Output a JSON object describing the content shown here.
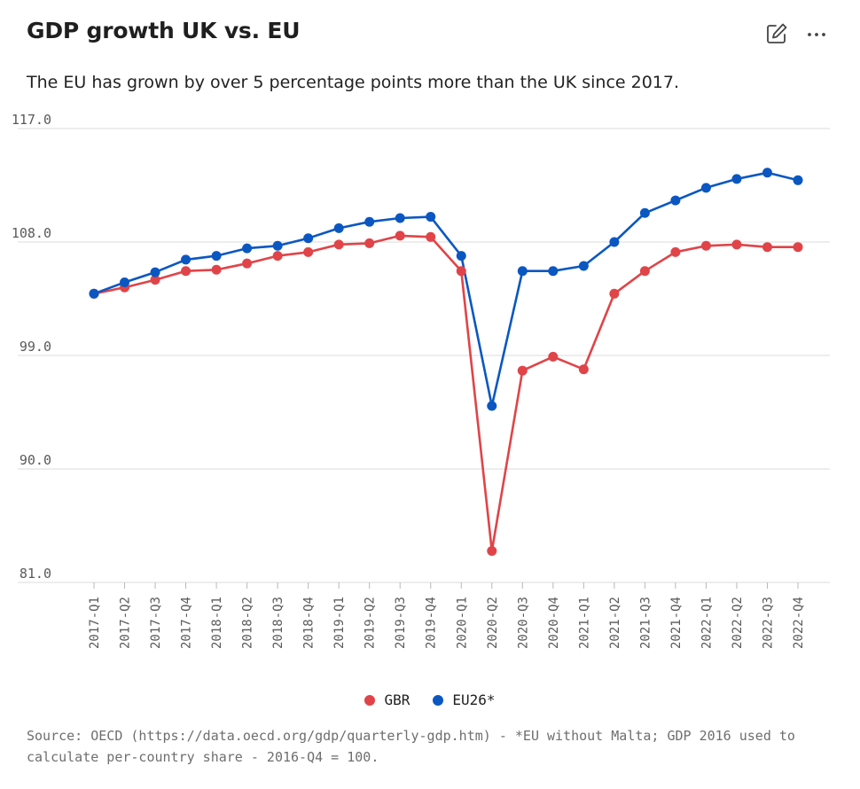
{
  "header": {
    "title": "GDP growth UK vs. EU",
    "subtitle": "The EU has grown by over 5 percentage points more than the UK since 2017.",
    "edit_icon": "pencil-square-icon",
    "more_icon": "ellipsis-icon"
  },
  "chart_data": {
    "type": "line",
    "title": "GDP growth UK vs. EU",
    "xlabel": "",
    "ylabel": "",
    "ylim": [
      81.0,
      117.0
    ],
    "yticks": [
      "117.0",
      "108.0",
      "99.0",
      "90.0",
      "81.0"
    ],
    "grid": true,
    "legend_position": "bottom",
    "categories": [
      "2017-Q1",
      "2017-Q2",
      "2017-Q3",
      "2017-Q4",
      "2018-Q1",
      "2018-Q2",
      "2018-Q3",
      "2018-Q4",
      "2019-Q1",
      "2019-Q2",
      "2019-Q3",
      "2019-Q4",
      "2020-Q1",
      "2020-Q2",
      "2020-Q3",
      "2020-Q4",
      "2021-Q1",
      "2021-Q2",
      "2021-Q3",
      "2021-Q4",
      "2022-Q1",
      "2022-Q2",
      "2022-Q3",
      "2022-Q4"
    ],
    "series": [
      {
        "name": "GBR",
        "color": "#e04448",
        "values": [
          103.9,
          104.4,
          105.0,
          105.7,
          105.8,
          106.3,
          106.9,
          107.2,
          107.8,
          107.9,
          108.5,
          108.4,
          105.7,
          83.5,
          97.8,
          98.9,
          97.9,
          103.9,
          105.7,
          107.2,
          107.7,
          107.8,
          107.6,
          107.6
        ]
      },
      {
        "name": "EU26*",
        "color": "#0a57c2",
        "values": [
          103.9,
          104.8,
          105.6,
          106.6,
          106.9,
          107.5,
          107.7,
          108.3,
          109.1,
          109.6,
          109.9,
          110.0,
          106.9,
          95.0,
          105.7,
          105.7,
          106.1,
          108.0,
          110.3,
          111.3,
          112.3,
          113.0,
          113.5,
          112.9
        ]
      }
    ]
  },
  "legend": {
    "items": [
      {
        "label": "GBR",
        "color": "#e04448"
      },
      {
        "label": "EU26*",
        "color": "#0a57c2"
      }
    ]
  },
  "footer": {
    "source": "Source: OECD (https://data.oecd.org/gdp/quarterly-gdp.htm) - *EU without Malta; GDP 2016 used to calculate per-country share - 2016-Q4 = 100."
  }
}
